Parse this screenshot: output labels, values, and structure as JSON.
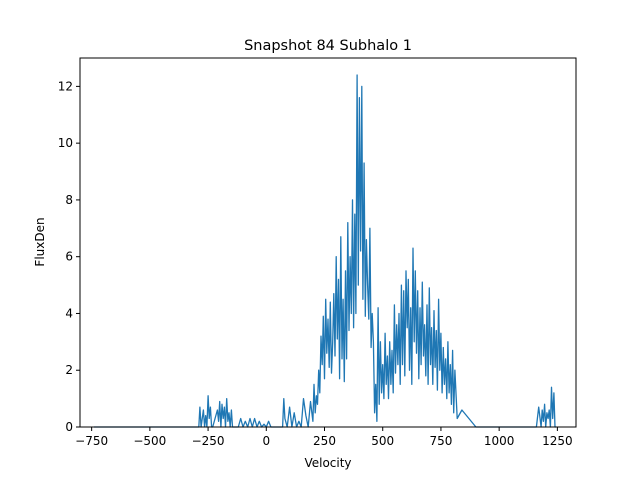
{
  "chart_data": {
    "type": "line",
    "title": "Snapshot 84 Subhalo 1",
    "xlabel": "Velocity",
    "ylabel": "FluxDen",
    "xlim": [
      -800,
      1330
    ],
    "ylim": [
      0,
      13
    ],
    "xticks": [
      -750,
      -500,
      -250,
      0,
      250,
      500,
      750,
      1000,
      1250
    ],
    "xtick_labels": [
      "−750",
      "−500",
      "−250",
      "0",
      "250",
      "500",
      "750",
      "1000",
      "1250"
    ],
    "yticks": [
      0,
      2,
      4,
      6,
      8,
      10,
      12
    ],
    "ytick_labels": [
      "0",
      "2",
      "4",
      "6",
      "8",
      "10",
      "12"
    ],
    "grid": false,
    "legend": "none",
    "series": [
      {
        "color": "#1f77b4",
        "x": [
          -740,
          -290,
          -285,
          -280,
          -270,
          -265,
          -260,
          -255,
          -250,
          -245,
          -240,
          -235,
          -230,
          -210,
          -205,
          -200,
          -195,
          -190,
          -185,
          -180,
          -175,
          -170,
          -165,
          -160,
          -155,
          -150,
          -145,
          -140,
          -130,
          -120,
          -110,
          -100,
          -90,
          -80,
          -70,
          -60,
          -50,
          -40,
          -30,
          -20,
          -10,
          0,
          10,
          20,
          30,
          40,
          50,
          60,
          70,
          75,
          80,
          90,
          100,
          110,
          120,
          130,
          140,
          150,
          160,
          170,
          180,
          190,
          200,
          205,
          210,
          215,
          220,
          225,
          230,
          235,
          240,
          245,
          250,
          255,
          260,
          265,
          270,
          275,
          280,
          285,
          290,
          295,
          300,
          305,
          310,
          315,
          320,
          325,
          330,
          335,
          340,
          345,
          350,
          355,
          360,
          365,
          370,
          375,
          380,
          385,
          390,
          395,
          400,
          405,
          410,
          415,
          420,
          425,
          430,
          435,
          440,
          445,
          450,
          455,
          460,
          465,
          470,
          475,
          480,
          485,
          490,
          495,
          500,
          505,
          510,
          515,
          520,
          525,
          530,
          535,
          540,
          545,
          550,
          555,
          560,
          565,
          570,
          575,
          580,
          585,
          590,
          595,
          600,
          605,
          610,
          615,
          620,
          625,
          630,
          635,
          640,
          645,
          650,
          655,
          660,
          665,
          670,
          675,
          680,
          685,
          690,
          695,
          700,
          705,
          710,
          715,
          720,
          725,
          730,
          735,
          740,
          745,
          750,
          755,
          760,
          765,
          770,
          775,
          780,
          785,
          790,
          795,
          800,
          805,
          810,
          820,
          840,
          900,
          1000,
          1100,
          1150,
          1160,
          1170,
          1180,
          1185,
          1190,
          1195,
          1200,
          1205,
          1210,
          1215,
          1220,
          1225,
          1230,
          1235,
          1240,
          1245
        ],
        "y": [
          0,
          0,
          0.7,
          0,
          0.6,
          0,
          0.4,
          0,
          1.1,
          0.3,
          0.7,
          0,
          0,
          0.6,
          0.2,
          0.9,
          0,
          0.8,
          0.3,
          0.7,
          0,
          1.0,
          0.2,
          0.5,
          0,
          0.6,
          0,
          0,
          0,
          0,
          0.3,
          0,
          0.2,
          0,
          0.3,
          0,
          0.3,
          0,
          0.2,
          0,
          0.1,
          0,
          0.2,
          0,
          0,
          0,
          0,
          0,
          0,
          1.0,
          0.3,
          0,
          0.7,
          0,
          0.5,
          0,
          0.2,
          0,
          1.0,
          0.4,
          0,
          0.9,
          0.2,
          1.5,
          0.5,
          1.1,
          0.8,
          2.0,
          1.2,
          3.2,
          2.2,
          3.9,
          1.7,
          4.5,
          2.6,
          3.8,
          2.1,
          4.4,
          1.9,
          3.0,
          4.7,
          2.5,
          6.0,
          3.1,
          5.2,
          1.7,
          6.7,
          2.4,
          4.5,
          1.6,
          5.5,
          2.4,
          7.2,
          3.4,
          6.0,
          4.0,
          8.0,
          3.5,
          7.5,
          4.0,
          12.4,
          5.0,
          11.6,
          6.2,
          12.0,
          4.5,
          9.3,
          3.9,
          6.6,
          5.0,
          3.8,
          7.0,
          2.8,
          4.0,
          3.0,
          0.5,
          1.5,
          0.2,
          4.2,
          0.8,
          3.0,
          1.2,
          2.2,
          1.0,
          3.3,
          1.5,
          2.5,
          1.0,
          3.0,
          1.5,
          2.7,
          1.2,
          4.3,
          1.9,
          3.6,
          2.2,
          4.0,
          1.5,
          5.0,
          2.2,
          4.8,
          1.8,
          5.5,
          3.5,
          5.2,
          2.0,
          4.2,
          1.5,
          6.3,
          3.0,
          5.5,
          2.6,
          4.8,
          1.7,
          4.2,
          2.2,
          5.1,
          2.5,
          3.6,
          1.8,
          4.3,
          1.5,
          4.9,
          2.2,
          3.5,
          1.5,
          4.1,
          2.1,
          3.4,
          1.3,
          4.5,
          2.0,
          3.3,
          1.2,
          2.8,
          1.5,
          2.4,
          1.0,
          3.0,
          1.2,
          2.2,
          0.8,
          2.7,
          0.5,
          2.0,
          0.3,
          0.6,
          0,
          0,
          0,
          0,
          0,
          0.7,
          0,
          0.6,
          0.2,
          0.8,
          0,
          0.5,
          0.3,
          0.6,
          0,
          1.4,
          0.3,
          1.2,
          0,
          0
        ]
      }
    ]
  }
}
